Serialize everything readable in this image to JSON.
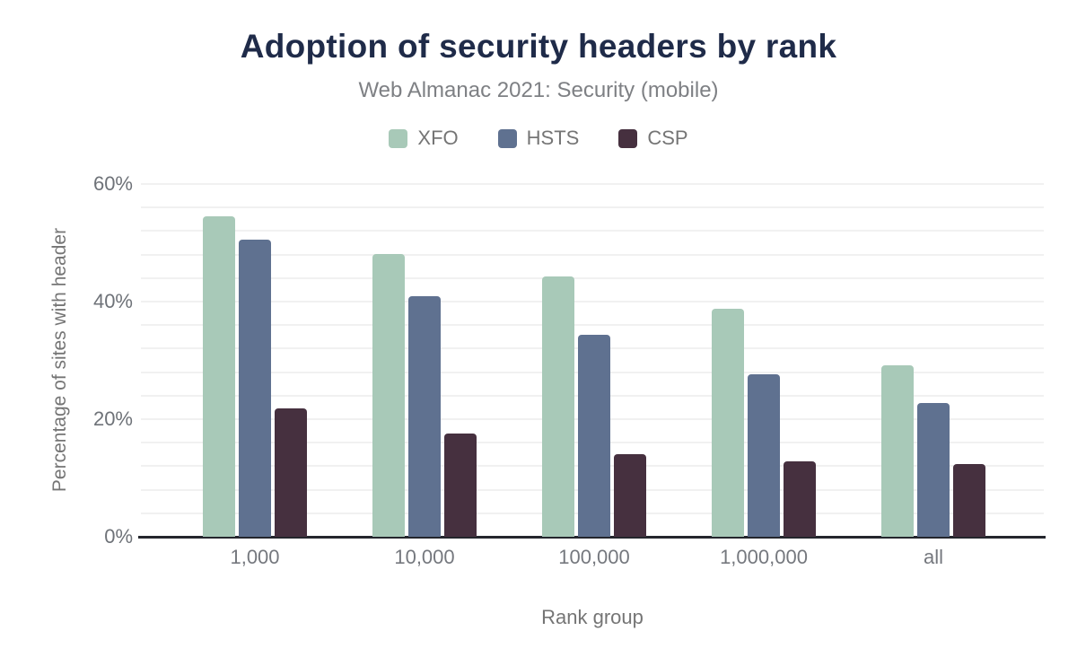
{
  "chart_data": {
    "type": "bar",
    "title": "Adoption of security headers by rank",
    "subtitle": "Web Almanac 2021: Security (mobile)",
    "categories": [
      "1,000",
      "10,000",
      "100,000",
      "1,000,000",
      "all"
    ],
    "series": [
      {
        "name": "XFO",
        "color": "#a8c9b8",
        "values": [
          54.5,
          48.1,
          44.3,
          38.8,
          29.2
        ]
      },
      {
        "name": "HSTS",
        "color": "#5f7190",
        "values": [
          50.6,
          40.9,
          34.4,
          27.7,
          22.8
        ]
      },
      {
        "name": "CSP",
        "color": "#46303f",
        "values": [
          21.9,
          17.5,
          14.0,
          12.9,
          12.3
        ]
      }
    ],
    "xlabel": "Rank group",
    "ylabel": "Percentage of sites with header",
    "ylim": [
      0,
      60
    ],
    "yticks": [
      {
        "value": 0,
        "label": "0%"
      },
      {
        "value": 20,
        "label": "20%"
      },
      {
        "value": 40,
        "label": "40%"
      },
      {
        "value": 60,
        "label": "60%"
      }
    ],
    "minor_gridline_step": 4,
    "grid": true,
    "legend_position": "top"
  },
  "style": {
    "title_color": "#1f2b49",
    "subtitle_color": "#7e8084",
    "text_color": "#757575",
    "axis_color": "#24262d",
    "gridline_color": "#f1f1f1",
    "background": "#ffffff"
  }
}
